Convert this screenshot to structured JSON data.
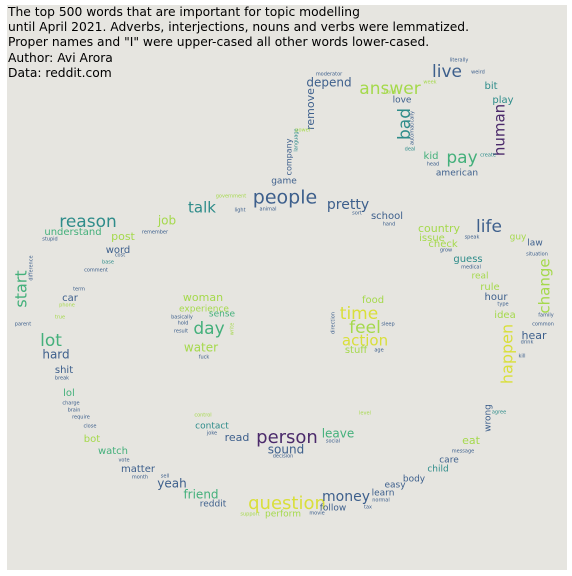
{
  "caption": {
    "lines": [
      "The top 500 words that are important for topic modelling",
      "until April 2021. Adverbs, interjections, nouns and verbs were lemmatized.",
      "Proper names and \"I\" were upper-cased all other words lower-cased.",
      "Author: Avi Arora",
      "Data: reddit.com"
    ]
  },
  "palette": {
    "background": "#e6e5e0",
    "purple": "#4b2a6b",
    "blue": "#3d5f8c",
    "teal": "#2e8c8a",
    "green": "#44b07b",
    "lime": "#a5d94c",
    "yellow": "#d9df3a"
  },
  "words": [
    {
      "text": "people",
      "color": "blue"
    },
    {
      "text": "person",
      "color": "purple"
    },
    {
      "text": "question",
      "color": "yellow"
    },
    {
      "text": "answer",
      "color": "lime"
    },
    {
      "text": "live",
      "color": "blue"
    },
    {
      "text": "reason",
      "color": "teal"
    },
    {
      "text": "life",
      "color": "blue"
    },
    {
      "text": "lot",
      "color": "green"
    },
    {
      "text": "time",
      "color": "yellow"
    },
    {
      "text": "feel",
      "color": "lime"
    },
    {
      "text": "action",
      "color": "yellow"
    },
    {
      "text": "day",
      "color": "green"
    },
    {
      "text": "start",
      "color": "green"
    },
    {
      "text": "happen",
      "color": "yellow"
    },
    {
      "text": "change",
      "color": "lime"
    },
    {
      "text": "bad",
      "color": "teal"
    },
    {
      "text": "human",
      "color": "purple"
    },
    {
      "text": "pay",
      "color": "green"
    },
    {
      "text": "talk",
      "color": "teal"
    },
    {
      "text": "pretty",
      "color": "blue"
    },
    {
      "text": "money",
      "color": "blue"
    },
    {
      "text": "depend",
      "color": "blue"
    },
    {
      "text": "remove",
      "color": "blue"
    },
    {
      "text": "hard",
      "color": "blue"
    },
    {
      "text": "water",
      "color": "lime"
    },
    {
      "text": "woman",
      "color": "lime"
    },
    {
      "text": "leave",
      "color": "green"
    },
    {
      "text": "sound",
      "color": "blue"
    },
    {
      "text": "read",
      "color": "blue"
    },
    {
      "text": "friend",
      "color": "green"
    },
    {
      "text": "yeah",
      "color": "blue"
    },
    {
      "text": "job",
      "color": "lime"
    },
    {
      "text": "post",
      "color": "lime"
    },
    {
      "text": "word",
      "color": "blue"
    },
    {
      "text": "understand",
      "color": "green"
    },
    {
      "text": "country",
      "color": "lime"
    },
    {
      "text": "issue",
      "color": "lime"
    },
    {
      "text": "check",
      "color": "lime"
    },
    {
      "text": "guess",
      "color": "teal"
    },
    {
      "text": "rule",
      "color": "lime"
    },
    {
      "text": "hour",
      "color": "blue"
    },
    {
      "text": "idea",
      "color": "lime"
    },
    {
      "text": "hear",
      "color": "blue"
    },
    {
      "text": "stuff",
      "color": "lime"
    },
    {
      "text": "food",
      "color": "lime"
    },
    {
      "text": "experience",
      "color": "lime"
    },
    {
      "text": "sense",
      "color": "green"
    },
    {
      "text": "school",
      "color": "blue"
    },
    {
      "text": "game",
      "color": "blue"
    },
    {
      "text": "company",
      "color": "blue"
    },
    {
      "text": "kid",
      "color": "green"
    },
    {
      "text": "american",
      "color": "blue"
    },
    {
      "text": "love",
      "color": "blue"
    },
    {
      "text": "bit",
      "color": "teal"
    },
    {
      "text": "play",
      "color": "teal"
    },
    {
      "text": "car",
      "color": "blue"
    },
    {
      "text": "shit",
      "color": "blue"
    },
    {
      "text": "lol",
      "color": "green"
    },
    {
      "text": "bot",
      "color": "lime"
    },
    {
      "text": "watch",
      "color": "green"
    },
    {
      "text": "matter",
      "color": "blue"
    },
    {
      "text": "reddit",
      "color": "blue"
    },
    {
      "text": "perform",
      "color": "lime"
    },
    {
      "text": "follow",
      "color": "blue"
    },
    {
      "text": "learn",
      "color": "blue"
    },
    {
      "text": "easy",
      "color": "blue"
    },
    {
      "text": "body",
      "color": "blue"
    },
    {
      "text": "child",
      "color": "teal"
    },
    {
      "text": "care",
      "color": "blue"
    },
    {
      "text": "eat",
      "color": "lime"
    },
    {
      "text": "wrong",
      "color": "blue"
    },
    {
      "text": "contact",
      "color": "teal"
    },
    {
      "text": "law",
      "color": "blue"
    },
    {
      "text": "guy",
      "color": "lime"
    },
    {
      "text": "real",
      "color": "lime"
    },
    {
      "text": "moderator",
      "color": "blue"
    },
    {
      "text": "literally",
      "color": "blue"
    },
    {
      "text": "weird",
      "color": "blue"
    },
    {
      "text": "week",
      "color": "lime"
    },
    {
      "text": "create",
      "color": "teal"
    },
    {
      "text": "head",
      "color": "blue"
    },
    {
      "text": "deal",
      "color": "teal"
    },
    {
      "text": "automatically",
      "color": "blue"
    },
    {
      "text": "language",
      "color": "teal"
    },
    {
      "text": "power",
      "color": "lime"
    },
    {
      "text": "support",
      "color": "lime"
    },
    {
      "text": "true",
      "color": "lime"
    },
    {
      "text": "phone",
      "color": "lime"
    },
    {
      "text": "term",
      "color": "blue"
    },
    {
      "text": "comment",
      "color": "blue"
    },
    {
      "text": "base",
      "color": "teal"
    },
    {
      "text": "cost",
      "color": "blue"
    },
    {
      "text": "remember",
      "color": "blue"
    },
    {
      "text": "stupid",
      "color": "blue"
    },
    {
      "text": "difference",
      "color": "blue"
    },
    {
      "text": "parent",
      "color": "blue"
    },
    {
      "text": "break",
      "color": "blue"
    },
    {
      "text": "charge",
      "color": "blue"
    },
    {
      "text": "brain",
      "color": "blue"
    },
    {
      "text": "require",
      "color": "blue"
    },
    {
      "text": "close",
      "color": "blue"
    },
    {
      "text": "month",
      "color": "blue"
    },
    {
      "text": "sell",
      "color": "blue"
    },
    {
      "text": "vote",
      "color": "blue"
    },
    {
      "text": "movie",
      "color": "blue"
    },
    {
      "text": "write",
      "color": "lime"
    },
    {
      "text": "tax",
      "color": "blue"
    },
    {
      "text": "normal",
      "color": "blue"
    },
    {
      "text": "social",
      "color": "blue"
    },
    {
      "text": "decision",
      "color": "blue"
    },
    {
      "text": "level",
      "color": "lime"
    },
    {
      "text": "control",
      "color": "lime"
    },
    {
      "text": "joke",
      "color": "blue"
    },
    {
      "text": "message",
      "color": "blue"
    },
    {
      "text": "agree",
      "color": "teal"
    },
    {
      "text": "family",
      "color": "blue"
    },
    {
      "text": "common",
      "color": "blue"
    },
    {
      "text": "drink",
      "color": "blue"
    },
    {
      "text": "kill",
      "color": "blue"
    },
    {
      "text": "type",
      "color": "blue"
    },
    {
      "text": "medical",
      "color": "blue"
    },
    {
      "text": "situation",
      "color": "blue"
    },
    {
      "text": "grow",
      "color": "blue"
    },
    {
      "text": "speak",
      "color": "blue"
    },
    {
      "text": "hand",
      "color": "blue"
    },
    {
      "text": "animal",
      "color": "blue"
    },
    {
      "text": "light",
      "color": "blue"
    },
    {
      "text": "government",
      "color": "lime"
    },
    {
      "text": "basically",
      "color": "blue"
    },
    {
      "text": "hold",
      "color": "blue"
    },
    {
      "text": "result",
      "color": "blue"
    },
    {
      "text": "fuck",
      "color": "blue"
    },
    {
      "text": "direction",
      "color": "blue"
    },
    {
      "text": "sleep",
      "color": "blue"
    },
    {
      "text": "age",
      "color": "blue"
    },
    {
      "text": "build",
      "color": "lime"
    },
    {
      "text": "sort",
      "color": "blue"
    }
  ]
}
